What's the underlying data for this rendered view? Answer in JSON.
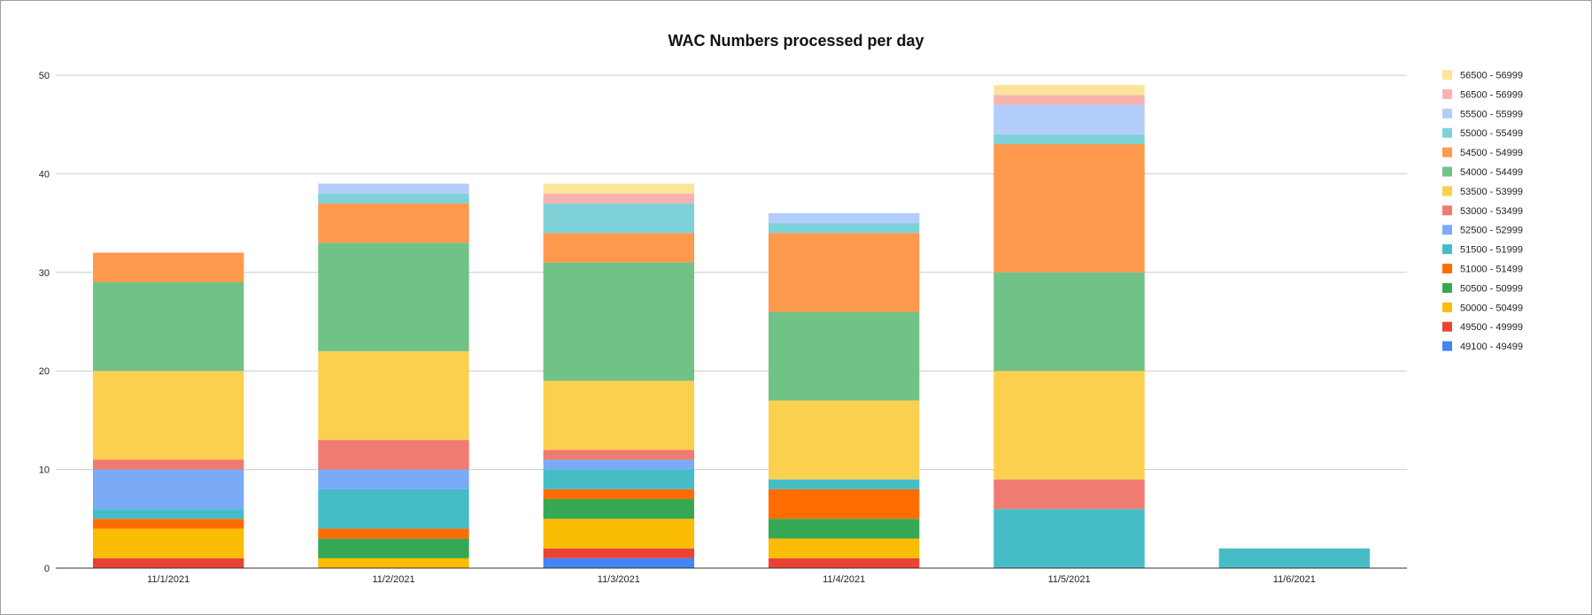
{
  "chart_data": {
    "type": "bar",
    "stacked": true,
    "title": "WAC Numbers processed per day",
    "xlabel": "",
    "ylabel": "",
    "ylim": [
      0,
      50
    ],
    "yticks": [
      0,
      10,
      20,
      30,
      40,
      50
    ],
    "grid": true,
    "legend_position": "right",
    "categories": [
      "11/1/2021",
      "11/2/2021",
      "11/3/2021",
      "11/4/2021",
      "11/5/2021",
      "11/6/2021"
    ],
    "series": [
      {
        "name": "49100 - 49499",
        "color": "#4285f4",
        "values": [
          0,
          0,
          1,
          0,
          0,
          0
        ]
      },
      {
        "name": "49500 - 49999",
        "color": "#ea4335",
        "values": [
          1,
          0,
          1,
          1,
          0,
          0
        ]
      },
      {
        "name": "50000 - 50499",
        "color": "#fbbc04",
        "values": [
          3,
          1,
          3,
          2,
          0,
          0
        ]
      },
      {
        "name": "50500 - 50999",
        "color": "#34a853",
        "values": [
          0,
          2,
          2,
          2,
          0,
          0
        ]
      },
      {
        "name": "51000 - 51499",
        "color": "#ff6d01",
        "values": [
          1,
          1,
          1,
          3,
          0,
          0
        ]
      },
      {
        "name": "51500 - 51999",
        "color": "#46bdc6",
        "values": [
          1,
          4,
          2,
          1,
          6,
          2
        ]
      },
      {
        "name": "52500 - 52999",
        "color": "#7baaf7",
        "values": [
          4,
          2,
          1,
          0,
          0,
          0
        ]
      },
      {
        "name": "53000 - 53499",
        "color": "#f07b72",
        "values": [
          1,
          3,
          1,
          0,
          3,
          0
        ]
      },
      {
        "name": "53500 - 53999",
        "color": "#fcd04f",
        "values": [
          9,
          9,
          7,
          8,
          11,
          0
        ]
      },
      {
        "name": "54000 - 54499",
        "color": "#71c287",
        "values": [
          9,
          11,
          12,
          9,
          10,
          0
        ]
      },
      {
        "name": "54500 - 54999",
        "color": "#ff994d",
        "values": [
          3,
          4,
          3,
          8,
          13,
          0
        ]
      },
      {
        "name": "55000 - 55499",
        "color": "#7ed1d7",
        "values": [
          0,
          1,
          3,
          1,
          1,
          0
        ]
      },
      {
        "name": "55500 - 55999",
        "color": "#b3cefb",
        "values": [
          0,
          1,
          0,
          1,
          3,
          0
        ]
      },
      {
        "name": "56500 - 56999",
        "color": "#f7b4ae",
        "values": [
          0,
          0,
          1,
          0,
          1,
          0
        ]
      },
      {
        "name": "56500 - 56999",
        "color": "#fde49b",
        "values": [
          0,
          0,
          1,
          0,
          1,
          0
        ]
      }
    ]
  }
}
